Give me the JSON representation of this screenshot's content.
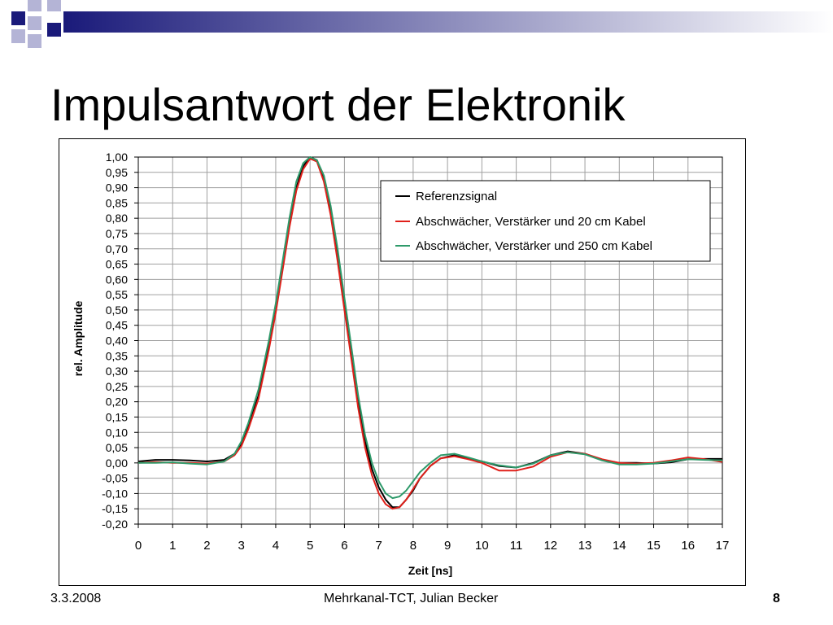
{
  "slide": {
    "title": "Impulsantwort der Elektronik",
    "date": "3.3.2008",
    "footer": "Mehrkanal-TCT, Julian Becker",
    "page_number": "8"
  },
  "colors": {
    "deco_navy": "#1a1a7a",
    "deco_lavender": "#b4b4d6",
    "referenz": "#000000",
    "kabel20": "#e0201a",
    "kabel250": "#2e9a6a",
    "gridline": "#a0a0a0"
  },
  "chart_data": {
    "type": "line",
    "title": "",
    "xlabel": "Zeit [ns]",
    "ylabel": "rel. Amplitude",
    "xlim": [
      0,
      17
    ],
    "ylim": [
      -0.2,
      1.0
    ],
    "grid": true,
    "legend_position": "top-right",
    "x_ticks": [
      "0",
      "1",
      "2",
      "3",
      "4",
      "5",
      "6",
      "7",
      "8",
      "9",
      "10",
      "11",
      "12",
      "13",
      "14",
      "15",
      "16",
      "17"
    ],
    "y_ticks": [
      "-0,20",
      "-0,15",
      "-0,10",
      "-0,05",
      "0,00",
      "0,05",
      "0,10",
      "0,15",
      "0,20",
      "0,25",
      "0,30",
      "0,35",
      "0,40",
      "0,45",
      "0,50",
      "0,55",
      "0,60",
      "0,65",
      "0,70",
      "0,75",
      "0,80",
      "0,85",
      "0,90",
      "0,95",
      "1,00"
    ],
    "series": [
      {
        "name": "Referenzsignal",
        "color": "#000000",
        "points": [
          [
            0,
            0.005
          ],
          [
            0.5,
            0.01
          ],
          [
            1,
            0.01
          ],
          [
            1.5,
            0.008
          ],
          [
            2,
            0.005
          ],
          [
            2.5,
            0.01
          ],
          [
            2.8,
            0.03
          ],
          [
            3,
            0.06
          ],
          [
            3.2,
            0.12
          ],
          [
            3.5,
            0.22
          ],
          [
            3.8,
            0.38
          ],
          [
            4,
            0.5
          ],
          [
            4.2,
            0.64
          ],
          [
            4.4,
            0.78
          ],
          [
            4.6,
            0.9
          ],
          [
            4.8,
            0.97
          ],
          [
            5,
            1.0
          ],
          [
            5.2,
            0.99
          ],
          [
            5.4,
            0.93
          ],
          [
            5.6,
            0.83
          ],
          [
            5.8,
            0.68
          ],
          [
            6,
            0.52
          ],
          [
            6.2,
            0.36
          ],
          [
            6.4,
            0.2
          ],
          [
            6.6,
            0.07
          ],
          [
            6.8,
            -0.02
          ],
          [
            7,
            -0.08
          ],
          [
            7.2,
            -0.12
          ],
          [
            7.4,
            -0.145
          ],
          [
            7.6,
            -0.145
          ],
          [
            7.8,
            -0.12
          ],
          [
            8,
            -0.09
          ],
          [
            8.2,
            -0.05
          ],
          [
            8.5,
            -0.01
          ],
          [
            8.8,
            0.015
          ],
          [
            9.2,
            0.025
          ],
          [
            9.6,
            0.015
          ],
          [
            10,
            0.005
          ],
          [
            10.5,
            -0.01
          ],
          [
            11,
            -0.015
          ],
          [
            11.5,
            0.0
          ],
          [
            12,
            0.025
          ],
          [
            12.5,
            0.038
          ],
          [
            13,
            0.03
          ],
          [
            13.5,
            0.01
          ],
          [
            14,
            0.0
          ],
          [
            14.5,
            0.0
          ],
          [
            15,
            -0.002
          ],
          [
            15.5,
            0.002
          ],
          [
            16,
            0.012
          ],
          [
            16.5,
            0.013
          ],
          [
            17,
            0.013
          ]
        ]
      },
      {
        "name": "Abschwächer, Verstärker und 20 cm Kabel",
        "color": "#e0201a",
        "points": [
          [
            0,
            0.0
          ],
          [
            0.5,
            0.003
          ],
          [
            1,
            0.0
          ],
          [
            1.5,
            0.0
          ],
          [
            2,
            -0.002
          ],
          [
            2.5,
            0.005
          ],
          [
            2.8,
            0.025
          ],
          [
            3,
            0.055
          ],
          [
            3.2,
            0.11
          ],
          [
            3.5,
            0.21
          ],
          [
            3.8,
            0.37
          ],
          [
            4,
            0.49
          ],
          [
            4.2,
            0.63
          ],
          [
            4.4,
            0.77
          ],
          [
            4.6,
            0.89
          ],
          [
            4.8,
            0.96
          ],
          [
            5,
            0.995
          ],
          [
            5.2,
            0.985
          ],
          [
            5.4,
            0.92
          ],
          [
            5.6,
            0.81
          ],
          [
            5.8,
            0.66
          ],
          [
            6,
            0.5
          ],
          [
            6.2,
            0.34
          ],
          [
            6.4,
            0.18
          ],
          [
            6.6,
            0.05
          ],
          [
            6.8,
            -0.04
          ],
          [
            7,
            -0.1
          ],
          [
            7.2,
            -0.135
          ],
          [
            7.4,
            -0.15
          ],
          [
            7.6,
            -0.145
          ],
          [
            7.8,
            -0.12
          ],
          [
            8,
            -0.085
          ],
          [
            8.2,
            -0.05
          ],
          [
            8.5,
            -0.01
          ],
          [
            8.8,
            0.015
          ],
          [
            9.2,
            0.022
          ],
          [
            9.6,
            0.012
          ],
          [
            10,
            0.0
          ],
          [
            10.5,
            -0.025
          ],
          [
            11,
            -0.025
          ],
          [
            11.5,
            -0.012
          ],
          [
            12,
            0.02
          ],
          [
            12.5,
            0.035
          ],
          [
            13,
            0.03
          ],
          [
            13.5,
            0.012
          ],
          [
            14,
            0.0
          ],
          [
            14.5,
            -0.002
          ],
          [
            15,
            0.0
          ],
          [
            15.5,
            0.008
          ],
          [
            16,
            0.018
          ],
          [
            16.5,
            0.012
          ],
          [
            17,
            0.003
          ]
        ]
      },
      {
        "name": "Abschwächer, Verstärker und 250 cm Kabel",
        "color": "#2e9a6a",
        "points": [
          [
            0,
            0.0
          ],
          [
            0.5,
            0.0
          ],
          [
            1,
            0.002
          ],
          [
            1.5,
            -0.002
          ],
          [
            2,
            -0.005
          ],
          [
            2.5,
            0.005
          ],
          [
            2.8,
            0.03
          ],
          [
            3,
            0.07
          ],
          [
            3.2,
            0.13
          ],
          [
            3.5,
            0.24
          ],
          [
            3.8,
            0.4
          ],
          [
            4,
            0.52
          ],
          [
            4.2,
            0.66
          ],
          [
            4.4,
            0.8
          ],
          [
            4.6,
            0.92
          ],
          [
            4.8,
            0.98
          ],
          [
            5,
            1.0
          ],
          [
            5.2,
            0.99
          ],
          [
            5.4,
            0.94
          ],
          [
            5.6,
            0.84
          ],
          [
            5.8,
            0.7
          ],
          [
            6,
            0.54
          ],
          [
            6.2,
            0.38
          ],
          [
            6.4,
            0.22
          ],
          [
            6.6,
            0.09
          ],
          [
            6.8,
            0.0
          ],
          [
            7,
            -0.06
          ],
          [
            7.2,
            -0.1
          ],
          [
            7.4,
            -0.115
          ],
          [
            7.6,
            -0.11
          ],
          [
            7.8,
            -0.09
          ],
          [
            8,
            -0.06
          ],
          [
            8.2,
            -0.03
          ],
          [
            8.5,
            0.0
          ],
          [
            8.8,
            0.025
          ],
          [
            9.2,
            0.03
          ],
          [
            9.6,
            0.018
          ],
          [
            10,
            0.005
          ],
          [
            10.5,
            -0.008
          ],
          [
            11,
            -0.015
          ],
          [
            11.5,
            -0.002
          ],
          [
            12,
            0.025
          ],
          [
            12.5,
            0.035
          ],
          [
            13,
            0.028
          ],
          [
            13.5,
            0.008
          ],
          [
            14,
            -0.005
          ],
          [
            14.5,
            -0.005
          ],
          [
            15,
            -0.002
          ],
          [
            15.5,
            0.005
          ],
          [
            16,
            0.012
          ],
          [
            16.5,
            0.01
          ],
          [
            17,
            0.008
          ]
        ]
      }
    ]
  }
}
